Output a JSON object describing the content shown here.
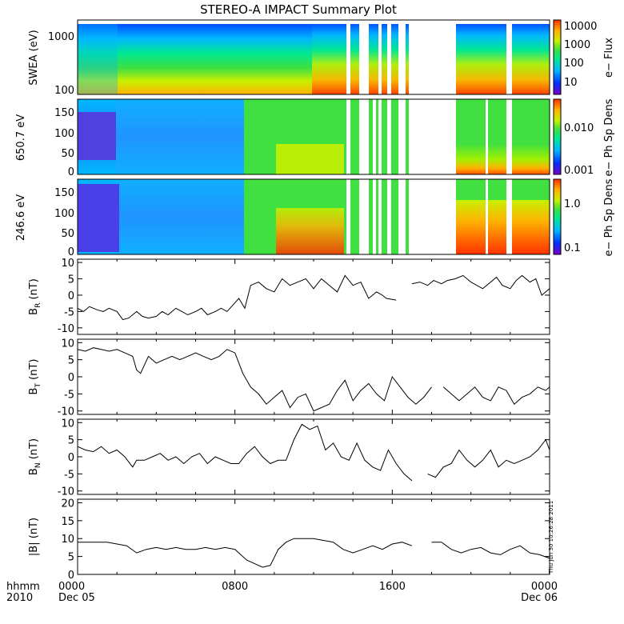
{
  "page": {
    "title": "STEREO-A IMPACT Summary Plot",
    "x_axis": {
      "corner_top": "hhmm",
      "corner_bottom": "2010",
      "ticks": [
        {
          "hour": 0,
          "label": "0000",
          "sublabel": "Dec 05"
        },
        {
          "hour": 8,
          "label": "0800",
          "sublabel": ""
        },
        {
          "hour": 16,
          "label": "1600",
          "sublabel": ""
        },
        {
          "hour": 24,
          "label": "0000",
          "sublabel": "Dec 06"
        }
      ],
      "range_hours": [
        0,
        24
      ]
    },
    "timestamp": "Thu Jun 30 10:26:28 2011"
  },
  "colors": {
    "background": "#ffffff",
    "frame": "#000000",
    "trace": "#000000",
    "colormap": [
      "#7a00c8",
      "#0030ff",
      "#00b8ff",
      "#00e890",
      "#40e040",
      "#c8f000",
      "#ffb000",
      "#ff3000"
    ]
  },
  "spectrograms": [
    {
      "id": "swea",
      "ylabel": "SWEA (eV)",
      "y_ticks": [
        "1000",
        "100"
      ],
      "yscale": "log",
      "ylim": [
        90,
        2000
      ],
      "colorbar": {
        "label": "e− Flux",
        "ticks": [
          "10000",
          "1000",
          "100",
          "10"
        ],
        "scale": "log"
      }
    },
    {
      "id": "pad650",
      "ylabel": "650.7 eV",
      "y_ticks": [
        "150",
        "100",
        "50",
        "0"
      ],
      "yscale": "linear",
      "ylim": [
        0,
        180
      ],
      "colorbar": {
        "label": "e− Ph Sp Dens",
        "ticks": [
          "0.010",
          "0.001"
        ],
        "scale": "log"
      }
    },
    {
      "id": "pad246",
      "ylabel": "246.6 eV",
      "y_ticks": [
        "150",
        "100",
        "50",
        "0"
      ],
      "yscale": "linear",
      "ylim": [
        0,
        180
      ],
      "colorbar": {
        "label": "e− Ph Sp Dens",
        "ticks": [
          "1.0",
          "0.1"
        ],
        "scale": "log"
      }
    }
  ],
  "data_gaps_hours": [
    [
      14.8,
      15.0
    ],
    [
      15.5,
      15.7
    ],
    [
      16.5,
      16.6
    ],
    [
      17.0,
      17.2
    ],
    [
      17.6,
      17.8
    ],
    [
      17.9,
      19.5
    ],
    [
      19.5,
      20.5
    ],
    [
      22.2,
      22.4
    ]
  ],
  "chart_data": [
    {
      "type": "line",
      "title": "",
      "ylabel": "BR (nT)",
      "ylabel_main": "B",
      "ylabel_sub": "R",
      "ylabel_unit": "(nT)",
      "y_ticks": [
        10,
        5,
        0,
        -5,
        -10
      ],
      "ylim": [
        -12,
        11
      ],
      "xlim": [
        0,
        24
      ],
      "series": [
        {
          "x": [
            0,
            0.3,
            0.6,
            1,
            1.3,
            1.6,
            2,
            2.3,
            2.6,
            3,
            3.3,
            3.6,
            4,
            4.3,
            4.6,
            5,
            5.3,
            5.6,
            6,
            6.3,
            6.6,
            7,
            7.3,
            7.6,
            7.9,
            8.2,
            8.5,
            8.8,
            9.2,
            9.6,
            10,
            10.4,
            10.8,
            11.2,
            11.6,
            12,
            12.4,
            12.8,
            13.2,
            13.6,
            14,
            14.4,
            14.8,
            15.2,
            15.5,
            15.7,
            16.2,
            16.6,
            17,
            17.4,
            17.8,
            18.1,
            18.5,
            18.8,
            19.2,
            19.6,
            20,
            20.3,
            20.6,
            21,
            21.3,
            21.6,
            22,
            22.3,
            22.6,
            23,
            23.3,
            23.6,
            24
          ],
          "y": [
            -4,
            -5,
            -3.5,
            -4.5,
            -5,
            -4,
            -5,
            -7.5,
            -7,
            -5,
            -6.5,
            -7,
            -6.5,
            -5,
            -6,
            -4,
            -5,
            -6,
            -5,
            -4,
            -6,
            -5,
            -4,
            -5,
            -3,
            -1,
            -4,
            3,
            4,
            2,
            1,
            5,
            3,
            4,
            5,
            2,
            5,
            3,
            1,
            6,
            3,
            4,
            -1,
            1,
            0,
            -1,
            -1.5,
            null,
            3.5,
            4,
            3,
            4.5,
            3.5,
            4.5,
            5,
            6,
            4,
            3,
            2,
            4,
            5.5,
            3,
            2,
            4.5,
            6,
            4,
            5,
            0,
            2
          ]
        }
      ]
    },
    {
      "type": "line",
      "title": "",
      "ylabel": "BT (nT)",
      "ylabel_main": "B",
      "ylabel_sub": "T",
      "ylabel_unit": "(nT)",
      "y_ticks": [
        10,
        5,
        0,
        -5,
        -10
      ],
      "ylim": [
        -11,
        11
      ],
      "xlim": [
        0,
        24
      ],
      "series": [
        {
          "x": [
            0,
            0.4,
            0.8,
            1.2,
            1.6,
            2,
            2.4,
            2.8,
            3,
            3.2,
            3.6,
            4,
            4.4,
            4.8,
            5.2,
            5.6,
            6,
            6.4,
            6.8,
            7.2,
            7.6,
            8,
            8.4,
            8.8,
            9.2,
            9.6,
            10,
            10.4,
            10.8,
            11.2,
            11.6,
            12,
            12.4,
            12.8,
            13.2,
            13.6,
            14,
            14.4,
            14.8,
            15.2,
            15.6,
            16,
            16.4,
            16.8,
            17.2,
            17.6,
            18,
            18.3,
            18.6,
            19,
            19.4,
            19.8,
            20.2,
            20.6,
            21,
            21.4,
            21.8,
            22.2,
            22.6,
            23,
            23.4,
            23.8,
            24
          ],
          "y": [
            8,
            7.5,
            8.5,
            8,
            7.5,
            8,
            7,
            6,
            2,
            1,
            6,
            4,
            5,
            6,
            5,
            6,
            7,
            6,
            5,
            6,
            8,
            7,
            1,
            -3,
            -5,
            -8,
            -6,
            -4,
            -9,
            -6,
            -5,
            -10,
            -9,
            -8,
            -4,
            -1,
            -7,
            -4,
            -2,
            -5,
            -7,
            0,
            -3,
            -6,
            -8,
            -6,
            -3,
            null,
            -3,
            -5,
            -7,
            -5,
            -3,
            -6,
            -7,
            -3,
            -4,
            -8,
            -6,
            -5,
            -3,
            -4,
            -3
          ]
        }
      ]
    },
    {
      "type": "line",
      "title": "",
      "ylabel": "BN (nT)",
      "ylabel_main": "B",
      "ylabel_sub": "N",
      "ylabel_unit": "(nT)",
      "y_ticks": [
        10,
        5,
        0,
        -5,
        -10
      ],
      "ylim": [
        -11,
        11
      ],
      "xlim": [
        0,
        24
      ],
      "series": [
        {
          "x": [
            0,
            0.4,
            0.8,
            1.2,
            1.6,
            2,
            2.4,
            2.8,
            3,
            3.4,
            3.8,
            4.2,
            4.6,
            5,
            5.4,
            5.8,
            6.2,
            6.6,
            7,
            7.4,
            7.8,
            8.2,
            8.6,
            9,
            9.4,
            9.8,
            10.2,
            10.6,
            11,
            11.4,
            11.8,
            12.2,
            12.6,
            13,
            13.4,
            13.8,
            14.2,
            14.6,
            15,
            15.4,
            15.8,
            16.2,
            16.6,
            17,
            17.4,
            17.8,
            18.2,
            18.6,
            19,
            19.4,
            19.8,
            20.2,
            20.6,
            21,
            21.4,
            21.8,
            22.2,
            22.6,
            23,
            23.4,
            23.8,
            24
          ],
          "y": [
            3,
            2,
            1.5,
            3,
            1,
            2,
            0,
            -3,
            -1,
            -1,
            0,
            1,
            -1,
            0,
            -2,
            0,
            1,
            -2,
            0,
            -1,
            -2,
            -2,
            1,
            3,
            0,
            -2,
            -1,
            -1,
            5,
            9.5,
            8,
            9,
            2,
            4,
            0,
            -1,
            4,
            -1,
            -3,
            -4,
            2,
            -2,
            -5,
            -7,
            null,
            -5,
            -6,
            -3,
            -2,
            2,
            -1,
            -3,
            -1,
            2,
            -3,
            -1,
            -2,
            -1,
            0,
            2,
            5,
            2
          ]
        }
      ]
    },
    {
      "type": "line",
      "title": "",
      "ylabel": "|B| (nT)",
      "ylabel_main": "|B|",
      "ylabel_sub": "",
      "ylabel_unit": "(nT)",
      "y_ticks": [
        20,
        15,
        10,
        5,
        0
      ],
      "ylim": [
        0,
        21
      ],
      "xlim": [
        0,
        24
      ],
      "series": [
        {
          "x": [
            0,
            0.5,
            1,
            1.5,
            2,
            2.5,
            3,
            3.5,
            4,
            4.5,
            5,
            5.5,
            6,
            6.5,
            7,
            7.5,
            8,
            8.3,
            8.6,
            9,
            9.4,
            9.8,
            10.2,
            10.6,
            11,
            11.5,
            12,
            12.5,
            13,
            13.5,
            14,
            14.5,
            15,
            15.5,
            16,
            16.5,
            17,
            17.5,
            18,
            18.5,
            19,
            19.5,
            20,
            20.5,
            21,
            21.5,
            22,
            22.5,
            23,
            23.5,
            24
          ],
          "y": [
            9,
            9,
            9,
            9,
            8.5,
            8,
            6,
            7,
            7.5,
            7,
            7.5,
            7,
            7,
            7.5,
            7,
            7.5,
            7,
            5.5,
            4,
            3,
            2,
            2.5,
            7,
            9,
            10,
            10,
            10,
            9.5,
            9,
            7,
            6,
            7,
            8,
            7,
            8.5,
            9,
            8,
            null,
            9,
            9,
            7,
            6,
            7,
            7.5,
            6,
            5.5,
            7,
            8,
            6,
            5.5,
            4.5
          ]
        }
      ]
    }
  ]
}
